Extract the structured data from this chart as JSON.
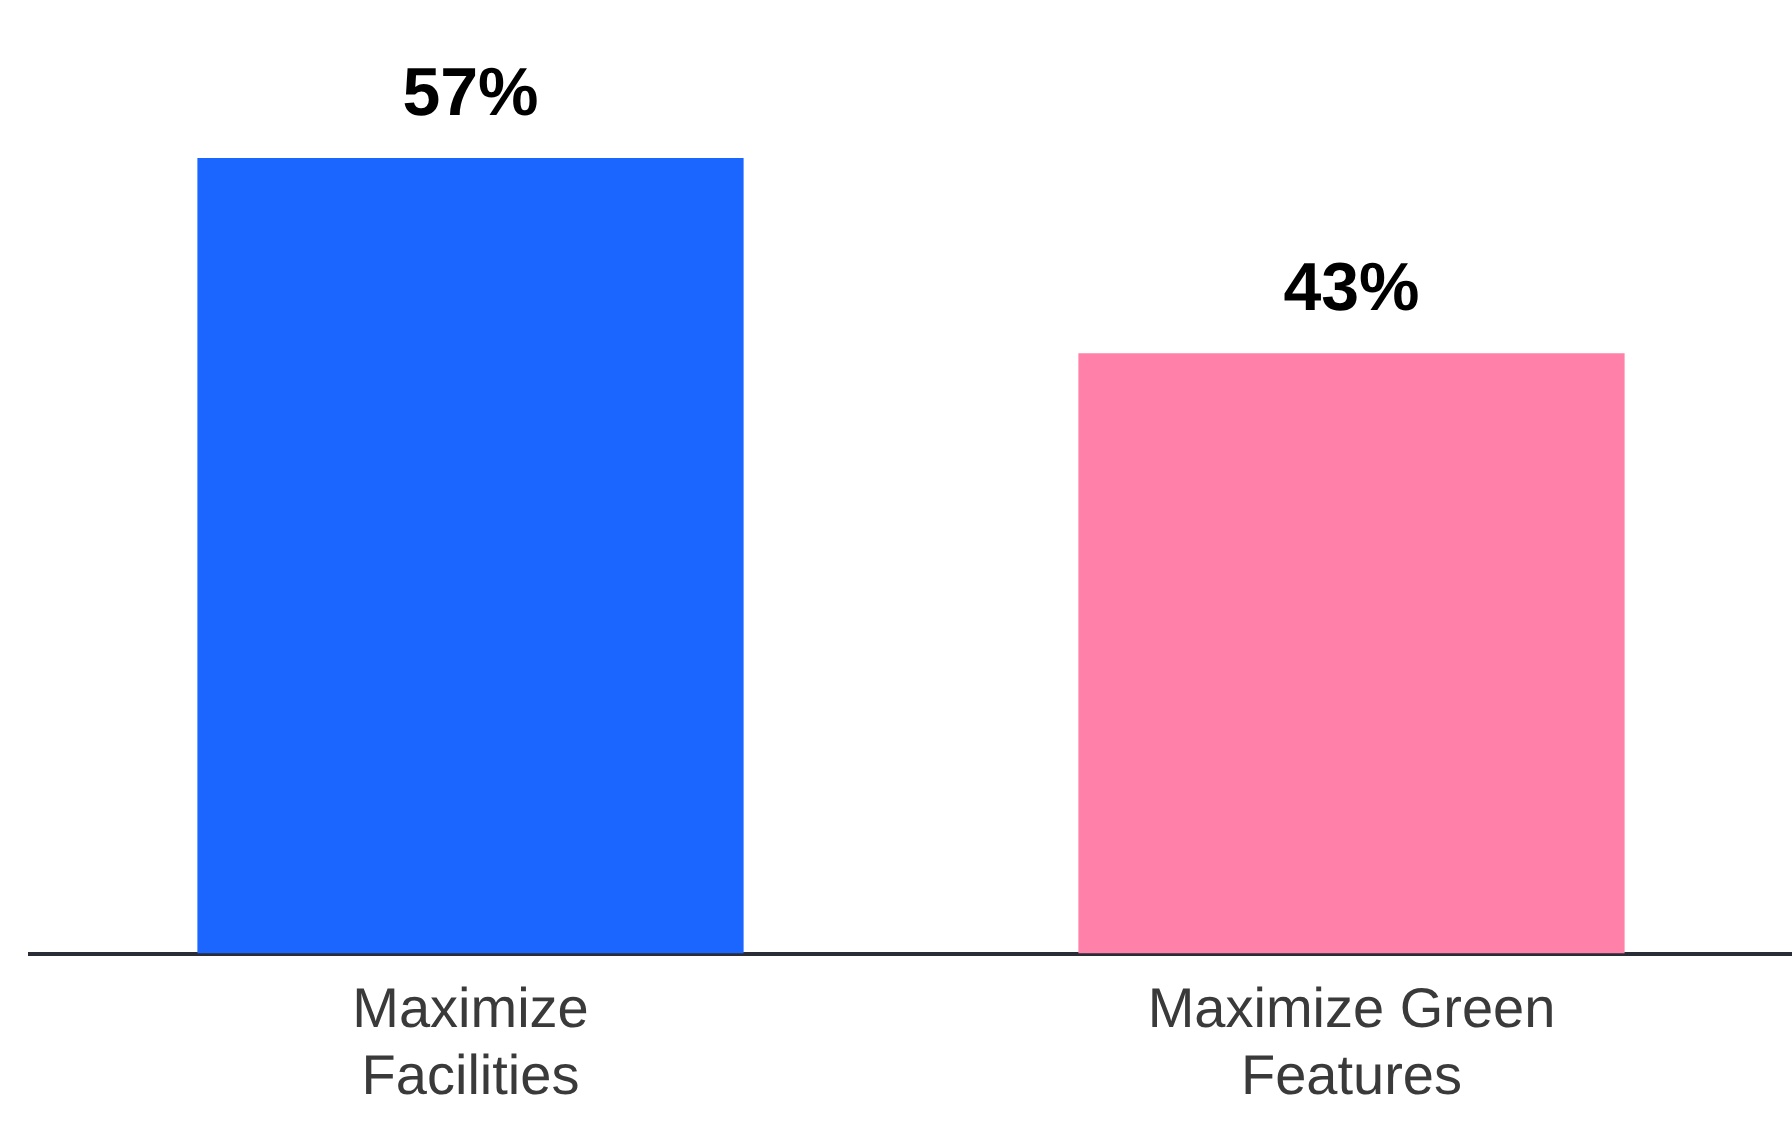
{
  "chart_data": {
    "type": "bar",
    "categories": [
      "Maximize Facilities",
      "Maximize Green Features"
    ],
    "values": [
      57,
      43
    ],
    "colors": [
      "#1a66ff",
      "#ff80a8"
    ],
    "value_labels": [
      "57%",
      "43%"
    ],
    "grid": false,
    "legend": false
  }
}
